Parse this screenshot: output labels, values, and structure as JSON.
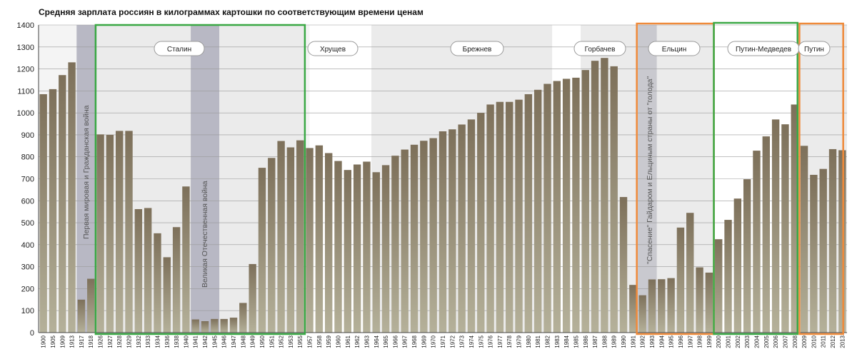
{
  "title": "Средняя зарплата россиян в килограммах картошки по соответствующим времени ценам",
  "chart_data": {
    "type": "bar",
    "title": "Средняя зарплата россиян в килограммах картошки по соответствующим времени ценам",
    "xlabel": "",
    "ylabel": "",
    "ylim": [
      0,
      1400
    ],
    "yticks": [
      0,
      100,
      200,
      300,
      400,
      500,
      600,
      700,
      800,
      900,
      1000,
      1100,
      1200,
      1300,
      1400
    ],
    "grid": true,
    "categories": [
      "1900",
      "1905",
      "1909",
      "1913",
      "1917",
      "1918",
      "1926",
      "1927",
      "1928",
      "1929",
      "1932",
      "1933",
      "1934",
      "1936",
      "1938",
      "1940",
      "1941",
      "1942",
      "1945",
      "1946",
      "1947",
      "1948",
      "1949",
      "1950",
      "1951",
      "1952",
      "1953",
      "1955",
      "1957",
      "1958",
      "1959",
      "1960",
      "1961",
      "1962",
      "1963",
      "1964",
      "1965",
      "1966",
      "1967",
      "1968",
      "1969",
      "1970",
      "1971",
      "1972",
      "1973",
      "1974",
      "1975",
      "1976",
      "1977",
      "1978",
      "1979",
      "1980",
      "1981",
      "1982",
      "1983",
      "1984",
      "1985",
      "1986",
      "1987",
      "1988",
      "1989",
      "1990",
      "1991",
      "1992",
      "1993",
      "1994",
      "1995",
      "1996",
      "1997",
      "1998",
      "1999",
      "2000",
      "2001",
      "2002",
      "2003",
      "2004",
      "2005",
      "2006",
      "2007",
      "2008",
      "2009",
      "2010",
      "2011",
      "2012",
      "2013"
    ],
    "values": [
      1085,
      1108,
      1172,
      1230,
      150,
      245,
      902,
      900,
      918,
      918,
      562,
      567,
      452,
      343,
      480,
      665,
      60,
      52,
      62,
      62,
      68,
      135,
      312,
      750,
      795,
      872,
      843,
      875,
      840,
      852,
      817,
      781,
      740,
      765,
      778,
      730,
      762,
      805,
      833,
      855,
      873,
      885,
      916,
      925,
      947,
      970,
      1000,
      1038,
      1050,
      1050,
      1060,
      1085,
      1105,
      1132,
      1145,
      1155,
      1160,
      1195,
      1237,
      1250,
      1212,
      617,
      217,
      170,
      242,
      243,
      248,
      478,
      545,
      297,
      273,
      425,
      513,
      610,
      698,
      828,
      893,
      970,
      948,
      1038,
      850,
      718,
      745,
      835,
      830
    ]
  },
  "eras": [
    {
      "label": "Сталин"
    },
    {
      "label": "Хрущев"
    },
    {
      "label": "Брежнев"
    },
    {
      "label": "Горбачев"
    },
    {
      "label": "Ельцин"
    },
    {
      "label": "Путин-Медведев"
    },
    {
      "label": "Путин"
    }
  ],
  "annotations": [
    {
      "text": "Первая мировая и Гражданская война"
    },
    {
      "text": "Великая Отечественная война"
    },
    {
      "text": "\"Спасение\" Гайдаром и Ельциным страны от \"голода\""
    }
  ],
  "colors": {
    "bar_top": "#7d705a",
    "bar_bottom": "#b5b19a",
    "band_light": "#ebebeb",
    "band_dark": "#b8b8c4",
    "green_box": "#3aa845",
    "orange_box": "#ef8a3a"
  }
}
